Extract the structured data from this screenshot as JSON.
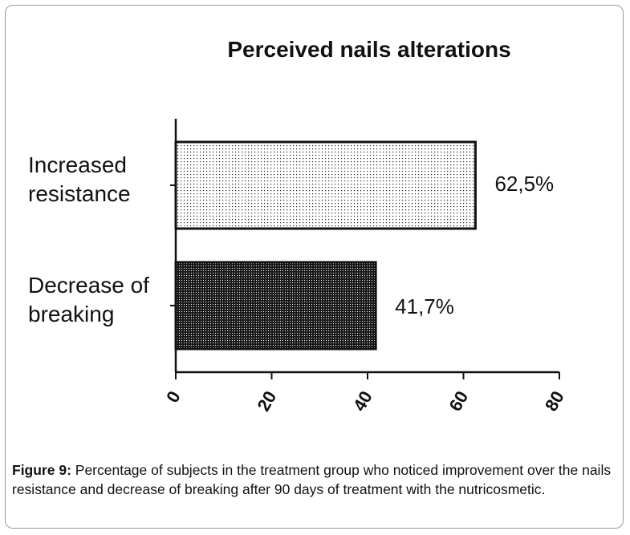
{
  "chart_data": {
    "type": "bar",
    "orientation": "horizontal",
    "title": "Perceived nails alterations",
    "categories": [
      [
        "Increased",
        "resistance"
      ],
      [
        "Decrease of",
        "breaking"
      ]
    ],
    "values": [
      62.5,
      41.7
    ],
    "value_labels": [
      "62,5%",
      "41,7%"
    ],
    "bar_patterns": [
      "light-dots",
      "dense-dots"
    ],
    "xlim": [
      0,
      80
    ],
    "xticks": [
      0,
      20,
      40,
      60,
      80
    ],
    "xlabel": "",
    "ylabel": "",
    "grid": false,
    "colors": {
      "bar_edge": "#111111",
      "pattern_light": "#111111",
      "pattern_dense": "#111111",
      "axis": "#111111"
    }
  },
  "caption": {
    "label": "Figure 9:",
    "text": " Percentage of subjects in the treatment group who noticed improvement over the nails resistance and decrease of breaking after 90 days of treatment with the nutricosmetic."
  }
}
